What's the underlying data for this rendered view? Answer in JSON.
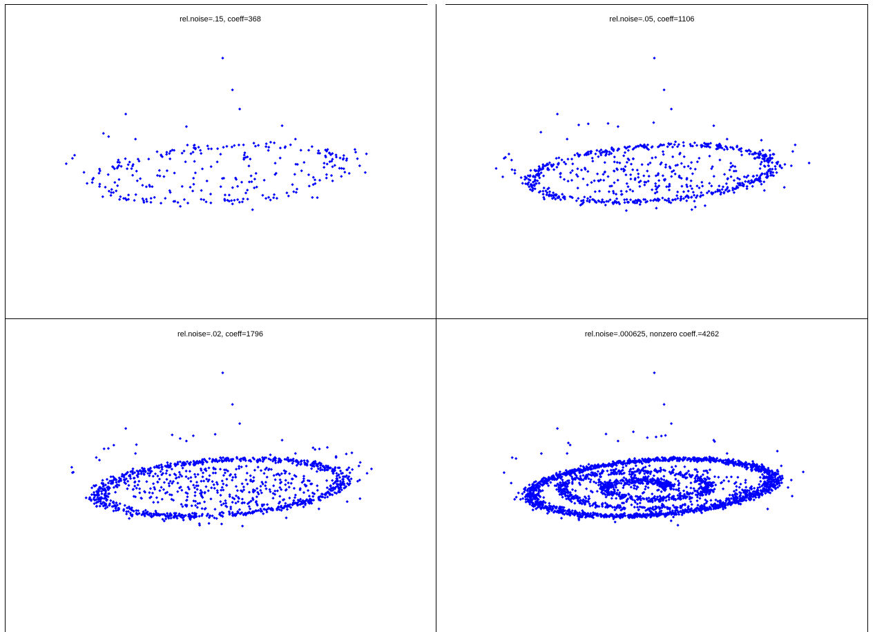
{
  "figure": {
    "marker_color": "#0000ff",
    "background_color": "#ffffff",
    "axis_color": "#000000"
  },
  "chart_data": [
    {
      "type": "scatter",
      "title": "rel.noise=.15, coeff=368",
      "xlabel": "",
      "ylabel": "",
      "axes_visible": false,
      "grid": false,
      "xlim": [
        -1.6,
        1.6
      ],
      "ylim": [
        -1.6,
        1.6
      ],
      "seed": 11,
      "series": [
        {
          "n_ring": 180,
          "ring_jitter": 0.07,
          "n_inner": 80,
          "n_outer": 12,
          "swirl": false
        }
      ]
    },
    {
      "type": "scatter",
      "title": "rel.noise=.05, coeff=1106",
      "xlabel": "",
      "ylabel": "",
      "axes_visible": false,
      "grid": false,
      "xlim": [
        -1.6,
        1.6
      ],
      "ylim": [
        -1.6,
        1.6
      ],
      "seed": 23,
      "series": [
        {
          "n_ring": 520,
          "ring_jitter": 0.045,
          "n_inner": 200,
          "n_outer": 28,
          "swirl": false
        }
      ]
    },
    {
      "type": "scatter",
      "title": "rel.noise=.02, coeff=1796",
      "xlabel": "",
      "ylabel": "",
      "axes_visible": false,
      "grid": false,
      "xlim": [
        -1.6,
        1.6
      ],
      "ylim": [
        -1.6,
        1.6
      ],
      "seed": 37,
      "series": [
        {
          "n_ring": 820,
          "ring_jitter": 0.05,
          "n_inner": 330,
          "n_outer": 40,
          "swirl": false
        }
      ]
    },
    {
      "type": "scatter",
      "title": "rel.noise=.000625, nonzero coeff.=4262",
      "xlabel": "",
      "ylabel": "",
      "axes_visible": false,
      "grid": false,
      "xlim": [
        -1.6,
        1.6
      ],
      "ylim": [
        -1.6,
        1.6
      ],
      "seed": 53,
      "series": [
        {
          "n_ring": 1500,
          "ring_jitter": 0.04,
          "n_inner": 260,
          "n_outer": 30,
          "swirl": true,
          "n_swirl": 900
        }
      ]
    }
  ]
}
